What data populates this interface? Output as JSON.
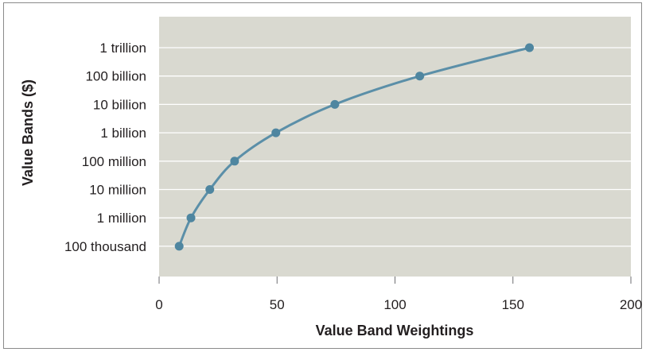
{
  "chart_data": {
    "type": "line",
    "title": "",
    "xlabel": "Value Band Weightings",
    "ylabel": "Value Bands ($)",
    "xlim": [
      0,
      200
    ],
    "x_ticks": [
      0,
      50,
      100,
      150,
      200
    ],
    "x_tick_labels": [
      "0",
      "50",
      "100",
      "150",
      "200"
    ],
    "y_scale": "log",
    "ylim": [
      10000,
      10000000000000
    ],
    "y_ticks": [
      100000,
      1000000,
      10000000,
      100000000,
      1000000000,
      10000000000,
      100000000000,
      1000000000000
    ],
    "y_tick_labels": [
      "100 thousand",
      "1 million",
      "10 million",
      "100 million",
      "1 billion",
      "10 billion",
      "100 billion",
      "1 trillion"
    ],
    "grid": "horizontal",
    "legend": "none",
    "series": [
      {
        "x": [
          8.5,
          13.5,
          21.5,
          32,
          49.5,
          74.5,
          110.5,
          157
        ],
        "y": [
          100000,
          1000000,
          10000000,
          100000000,
          1000000000,
          10000000000,
          100000000000,
          1000000000000
        ]
      }
    ],
    "colors": {
      "plot_background": "#d9d9d0",
      "line": "#5b8fa8",
      "marker": "#4f86a0",
      "gridline": "#ffffff",
      "text": "#231f20",
      "axis": "#6d6e71"
    }
  }
}
